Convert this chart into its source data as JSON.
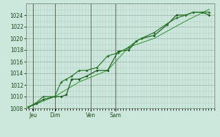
{
  "title": "",
  "bg_color": "#cce8dd",
  "grid_color_major": "#a0b8b0",
  "grid_color_minor": "#b8d0c8",
  "line_color1": "#1a5c1a",
  "line_color2": "#2a7a2a",
  "line_color3": "#3a9a3a",
  "ylim": [
    1008,
    1026
  ],
  "yticks": [
    1008,
    1010,
    1012,
    1014,
    1016,
    1018,
    1020,
    1022,
    1024
  ],
  "day_positions": [
    0.065,
    0.27,
    0.61,
    0.845
  ],
  "day_labels": [
    "Jeu",
    "Dim",
    "Ven",
    "Sam"
  ],
  "series1_x": [
    0.02,
    0.1,
    0.16,
    0.27,
    0.33,
    0.38,
    0.43,
    0.5,
    0.57,
    0.67,
    0.77,
    0.87,
    0.97,
    1.04,
    1.09,
    1.21,
    1.33,
    1.42,
    1.51,
    1.58,
    1.66,
    1.73
  ],
  "series1_y": [
    1008.2,
    1008.8,
    1009.5,
    1010.0,
    1010.0,
    1010.3,
    1013.0,
    1013.0,
    1013.5,
    1014.5,
    1014.5,
    1017.8,
    1018.0,
    1019.5,
    1020.0,
    1020.5,
    1022.3,
    1024.0,
    1024.0,
    1024.5,
    1024.5,
    1024.0
  ],
  "series2_x": [
    0.02,
    0.1,
    0.16,
    0.27,
    0.33,
    0.38,
    0.43,
    0.5,
    0.57,
    0.67,
    0.77,
    0.87,
    0.97,
    1.04,
    1.09,
    1.21,
    1.33,
    1.42,
    1.51,
    1.58,
    1.66,
    1.73
  ],
  "series2_y": [
    1008.2,
    1009.0,
    1010.0,
    1010.0,
    1012.5,
    1013.0,
    1013.5,
    1014.5,
    1014.5,
    1015.0,
    1017.0,
    1017.5,
    1018.5,
    1019.5,
    1020.0,
    1021.0,
    1022.5,
    1023.5,
    1024.0,
    1024.5,
    1024.5,
    1024.5
  ],
  "series3_x": [
    0.02,
    0.27,
    0.5,
    0.77,
    0.97,
    1.21,
    1.51,
    1.73
  ],
  "series3_y": [
    1008.2,
    1010.0,
    1012.5,
    1014.5,
    1018.5,
    1020.0,
    1023.0,
    1025.0
  ],
  "xlim": [
    0.0,
    1.78
  ],
  "vlines": [
    0.065,
    0.27,
    0.61,
    0.845
  ]
}
